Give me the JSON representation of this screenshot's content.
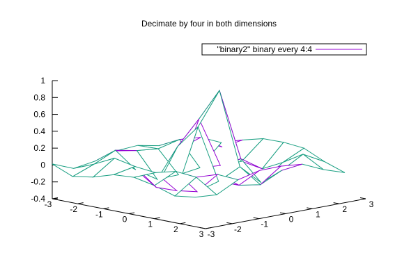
{
  "chart_data": {
    "type": "surface-wireframe-3d",
    "title": "Decimate by four in both dimensions",
    "legend": {
      "label": "\"binary2\" binary every 4:4",
      "position": "top-right"
    },
    "colors": {
      "surface_top": "#1a9f82",
      "surface_bottom": "#9400d3",
      "axis": "#000000"
    },
    "xlim": [
      -3,
      3
    ],
    "ylim": [
      -3,
      3
    ],
    "zlim": [
      -0.4,
      1
    ],
    "x_ticks": [
      "-3",
      "-2",
      "-1",
      "0",
      "1",
      "2",
      "3"
    ],
    "y_ticks": [
      "-3",
      "-2",
      "-1",
      "0",
      "1",
      "2",
      "3"
    ],
    "z_ticks": [
      "-0.4",
      "-0.2",
      "0",
      "0.2",
      "0.4",
      "0.6",
      "0.8",
      "1"
    ],
    "grid_x": [
      -3.0,
      -2.2,
      -1.4,
      -0.6,
      0.2,
      1.0,
      1.8,
      2.6
    ],
    "grid_y": [
      -3.0,
      -2.2,
      -1.4,
      -0.6,
      0.2,
      1.0,
      1.8,
      2.6
    ],
    "surface_function": "sin(r)/r, r = 3*sqrt(x^2 + y^2)"
  }
}
